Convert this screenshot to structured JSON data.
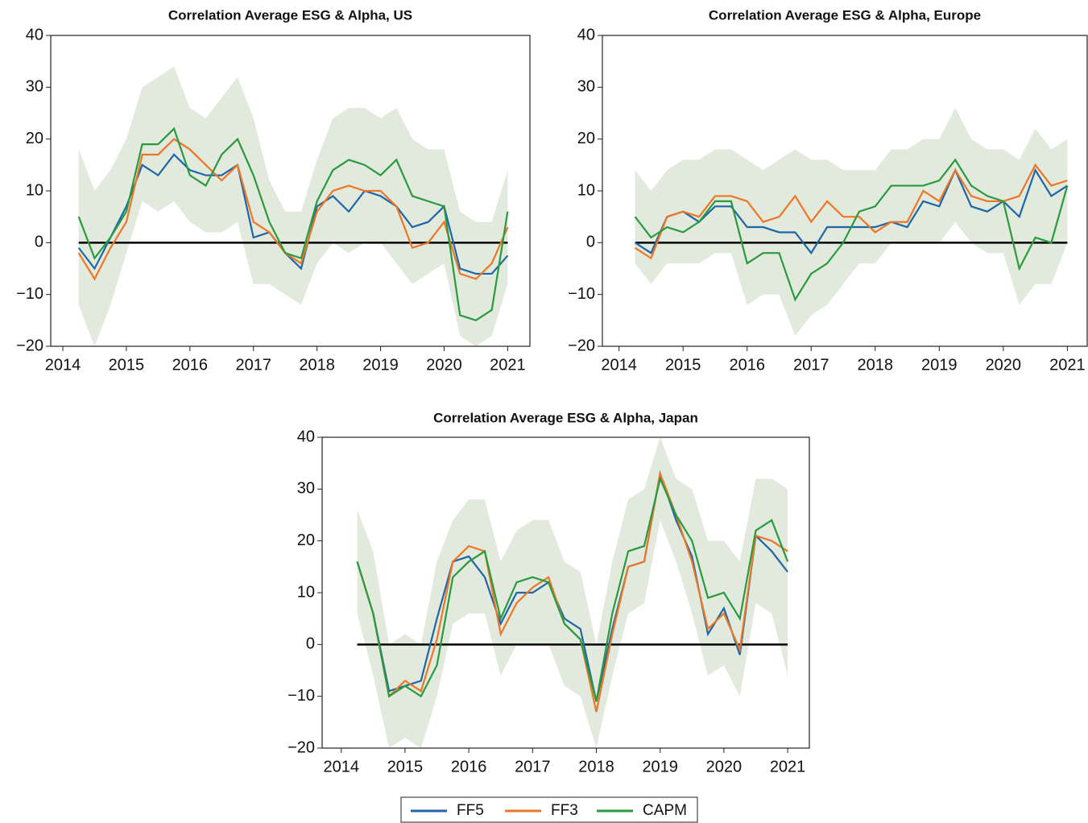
{
  "chart_data": [
    {
      "type": "line",
      "title": "Correlation Average ESG & Alpha, US",
      "x": [
        2014.25,
        2014.5,
        2014.75,
        2015,
        2015.25,
        2015.5,
        2015.75,
        2016,
        2016.25,
        2016.5,
        2016.75,
        2017,
        2017.25,
        2017.5,
        2017.75,
        2018,
        2018.25,
        2018.5,
        2018.75,
        2019,
        2019.25,
        2019.5,
        2019.75,
        2020,
        2020.25,
        2020.5,
        2020.75,
        2021
      ],
      "xlim": [
        2013.81,
        2021.35
      ],
      "xticks": [
        2014,
        2015,
        2016,
        2017,
        2018,
        2019,
        2020,
        2021
      ],
      "ylim": [
        -20,
        40
      ],
      "yticks": [
        {
          "value": -20,
          "label": "−20"
        },
        {
          "value": -10,
          "label": "−10"
        },
        0,
        10,
        20,
        30,
        40
      ],
      "hline": 0,
      "band_lower": [
        -12,
        -20,
        -12,
        -2,
        8,
        6,
        8,
        4,
        2,
        2,
        4,
        -8,
        -8,
        -10,
        -12,
        -4,
        0,
        -2,
        0,
        0,
        -4,
        -8,
        -6,
        -4,
        -18,
        -20,
        -18,
        -8
      ],
      "band_upper": [
        18,
        10,
        14,
        20,
        30,
        32,
        34,
        26,
        24,
        28,
        32,
        24,
        12,
        6,
        6,
        16,
        24,
        26,
        26,
        24,
        26,
        20,
        18,
        18,
        6,
        4,
        4,
        14
      ],
      "series": [
        {
          "name": "FF5",
          "color": "#1f66a8",
          "values": [
            -1,
            -5,
            1,
            7,
            15,
            13,
            17,
            14,
            13,
            13,
            15,
            1,
            2,
            -2,
            -5,
            7,
            9,
            6,
            10,
            9,
            7,
            3,
            4,
            7,
            -5,
            -6,
            -6,
            -2.5
          ]
        },
        {
          "name": "FF3",
          "color": "#ee7625",
          "values": [
            -2,
            -7,
            -1,
            4,
            17,
            17,
            20,
            18,
            15,
            12,
            15,
            4,
            2,
            -2,
            -4,
            6,
            10,
            11,
            10,
            10,
            7,
            -1,
            0,
            4,
            -6,
            -7,
            -4,
            3
          ]
        },
        {
          "name": "CAPM",
          "color": "#2a9a3f",
          "values": [
            5,
            -3,
            1,
            6,
            19,
            19,
            22,
            13,
            11,
            17,
            20,
            13,
            4,
            -2,
            -3,
            8,
            14,
            16,
            15,
            13,
            16,
            9,
            8,
            7,
            -14,
            -15,
            -13,
            6
          ]
        }
      ]
    },
    {
      "type": "line",
      "title": "Correlation Average ESG & Alpha, Europe",
      "x": [
        2014.25,
        2014.5,
        2014.75,
        2015,
        2015.25,
        2015.5,
        2015.75,
        2016,
        2016.25,
        2016.5,
        2016.75,
        2017,
        2017.25,
        2017.5,
        2017.75,
        2018,
        2018.25,
        2018.5,
        2018.75,
        2019,
        2019.25,
        2019.5,
        2019.75,
        2020,
        2020.25,
        2020.5,
        2020.75,
        2021
      ],
      "xlim": [
        2013.74,
        2021.31
      ],
      "xticks": [
        2014,
        2015,
        2016,
        2017,
        2018,
        2019,
        2020,
        2021
      ],
      "ylim": [
        -20,
        40
      ],
      "yticks": [
        {
          "value": -20,
          "label": "−20"
        },
        {
          "value": -10,
          "label": "−10"
        },
        0,
        10,
        20,
        30,
        40
      ],
      "hline": 0,
      "band_lower": [
        -4,
        -8,
        -4,
        -4,
        -4,
        -2,
        -2,
        -12,
        -10,
        -10,
        -18,
        -14,
        -12,
        -8,
        -4,
        -4,
        0,
        0,
        0,
        0,
        4,
        0,
        -2,
        -2,
        -12,
        -8,
        -8,
        0
      ],
      "band_upper": [
        14,
        10,
        14,
        16,
        16,
        18,
        18,
        16,
        14,
        16,
        18,
        16,
        16,
        14,
        14,
        14,
        18,
        18,
        20,
        20,
        26,
        20,
        18,
        18,
        16,
        22,
        18,
        20
      ],
      "series": [
        {
          "name": "FF5",
          "color": "#1f66a8",
          "values": [
            0,
            -2,
            5,
            6,
            4,
            7,
            7,
            3,
            3,
            2,
            2,
            -2,
            3,
            3,
            3,
            3,
            4,
            3,
            8,
            7,
            14,
            7,
            6,
            8,
            5,
            14,
            9,
            11
          ]
        },
        {
          "name": "FF3",
          "color": "#ee7625",
          "values": [
            -1,
            -3,
            5,
            6,
            5,
            9,
            9,
            8,
            4,
            5,
            9,
            4,
            8,
            5,
            5,
            2,
            4,
            4,
            10,
            8,
            14,
            9,
            8,
            8,
            9,
            15,
            11,
            12
          ]
        },
        {
          "name": "CAPM",
          "color": "#2a9a3f",
          "values": [
            5,
            1,
            3,
            2,
            4,
            8,
            8,
            -4,
            -2,
            -2,
            -11,
            -6,
            -4,
            0,
            6,
            7,
            11,
            11,
            11,
            12,
            16,
            11,
            9,
            8,
            -5,
            1,
            0,
            11
          ]
        }
      ]
    },
    {
      "type": "line",
      "title": "Correlation Average ESG & Alpha, Japan",
      "x": [
        2014.25,
        2014.5,
        2014.75,
        2015,
        2015.25,
        2015.5,
        2015.75,
        2016,
        2016.25,
        2016.5,
        2016.75,
        2017,
        2017.25,
        2017.5,
        2017.75,
        2018,
        2018.25,
        2018.5,
        2018.75,
        2019,
        2019.25,
        2019.5,
        2019.75,
        2020,
        2020.25,
        2020.5,
        2020.75,
        2021
      ],
      "xlim": [
        2013.7,
        2021.34
      ],
      "xticks": [
        2014,
        2015,
        2016,
        2017,
        2018,
        2019,
        2020,
        2021
      ],
      "ylim": [
        -20,
        40
      ],
      "yticks": [
        {
          "value": -20,
          "label": "−20"
        },
        {
          "value": -10,
          "label": "−10"
        },
        0,
        10,
        20,
        30,
        40
      ],
      "hline": 0,
      "band_lower": [
        6,
        -6,
        -20,
        -18,
        -20,
        -10,
        4,
        6,
        6,
        -6,
        0,
        0,
        0,
        -8,
        -10,
        -20,
        -6,
        6,
        8,
        24,
        16,
        6,
        -6,
        -4,
        -10,
        8,
        6,
        -6
      ],
      "band_upper": [
        26,
        18,
        0,
        2,
        0,
        16,
        24,
        28,
        28,
        16,
        22,
        24,
        24,
        16,
        14,
        0,
        16,
        28,
        30,
        40,
        32,
        30,
        20,
        20,
        16,
        32,
        32,
        30
      ],
      "series": [
        {
          "name": "FF5",
          "color": "#1f66a8",
          "values": [
            16,
            6,
            -9,
            -8,
            -7,
            5,
            16,
            17,
            13,
            4,
            10,
            10,
            12,
            5,
            3,
            -11,
            3,
            15,
            16,
            33,
            24,
            17,
            2,
            7,
            -2,
            21,
            18,
            14
          ]
        },
        {
          "name": "FF3",
          "color": "#ee7625",
          "values": [
            16,
            6,
            -10,
            -7,
            -9,
            1,
            16,
            19,
            18,
            2,
            8,
            11,
            13,
            4,
            1,
            -13,
            2,
            15,
            16,
            33,
            25,
            16,
            3,
            6,
            -1,
            21,
            20,
            18
          ]
        },
        {
          "name": "CAPM",
          "color": "#2a9a3f",
          "values": [
            16,
            6,
            -10,
            -8,
            -10,
            -4,
            13,
            16,
            18,
            5,
            12,
            13,
            12,
            4,
            1,
            -11,
            6,
            18,
            19,
            32,
            25,
            20,
            9,
            10,
            5,
            22,
            24,
            16
          ]
        }
      ]
    }
  ]
}
